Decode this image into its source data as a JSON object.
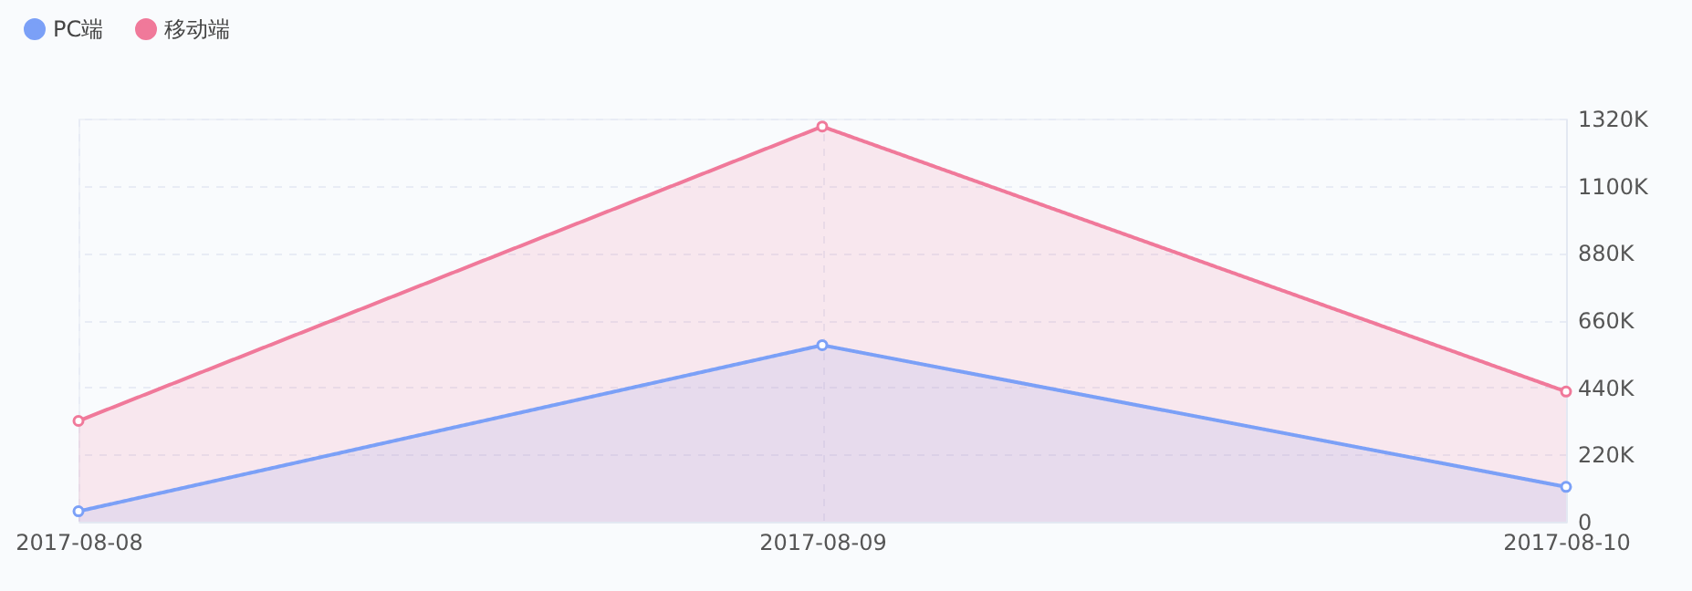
{
  "chart_data": {
    "type": "area",
    "categories": [
      "2017-08-08",
      "2017-08-09",
      "2017-08-10"
    ],
    "series": [
      {
        "name": "PC端",
        "color": "#7ba0f7",
        "values": [
          34000,
          578000,
          114000
        ]
      },
      {
        "name": "移动端",
        "color": "#f0799a",
        "values": [
          330000,
          1294000,
          426000
        ]
      }
    ],
    "ylim": [
      0,
      1320000
    ],
    "yticks": [
      0,
      {
        "value": 220000,
        "label": "220K"
      },
      {
        "value": 440000,
        "label": "440K"
      },
      {
        "value": 660000,
        "label": "660K"
      },
      {
        "value": 880000,
        "label": "880K"
      },
      {
        "value": 1100000,
        "label": "1100K"
      },
      {
        "value": 1320000,
        "label": "1320K"
      }
    ],
    "grid": true,
    "legend": "top left",
    "marker": "circle",
    "line_style": "solid"
  }
}
